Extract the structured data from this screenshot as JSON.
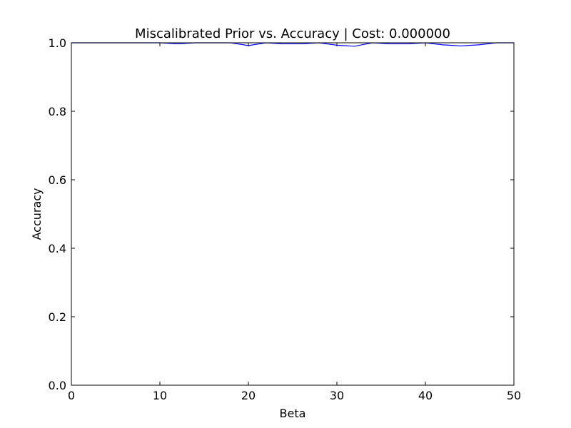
{
  "chart_data": {
    "type": "line",
    "title": "Miscalibrated Prior vs. Accuracy | Cost: 0.000000",
    "xlabel": "Beta",
    "ylabel": "Accuracy",
    "xlim": [
      0,
      50
    ],
    "ylim": [
      0.0,
      1.0
    ],
    "xticks": [
      "0",
      "10",
      "20",
      "30",
      "40",
      "50"
    ],
    "yticks": [
      "0.0",
      "0.2",
      "0.4",
      "0.6",
      "0.8",
      "1.0"
    ],
    "grid": false,
    "series": [
      {
        "color": "#0000ff",
        "x": [
          0,
          2,
          4,
          6,
          8,
          10,
          12,
          14,
          16,
          18,
          20,
          22,
          24,
          26,
          28,
          30,
          32,
          34,
          36,
          38,
          40,
          42,
          44,
          46,
          48,
          50
        ],
        "y": [
          1.0,
          1.0,
          1.0,
          1.0,
          1.0,
          1.0,
          0.997,
          1.0,
          1.0,
          1.0,
          0.992,
          1.0,
          0.997,
          0.997,
          1.0,
          0.993,
          0.99,
          1.0,
          0.997,
          0.997,
          1.0,
          0.994,
          0.991,
          0.994,
          1.0,
          1.0
        ]
      }
    ]
  }
}
